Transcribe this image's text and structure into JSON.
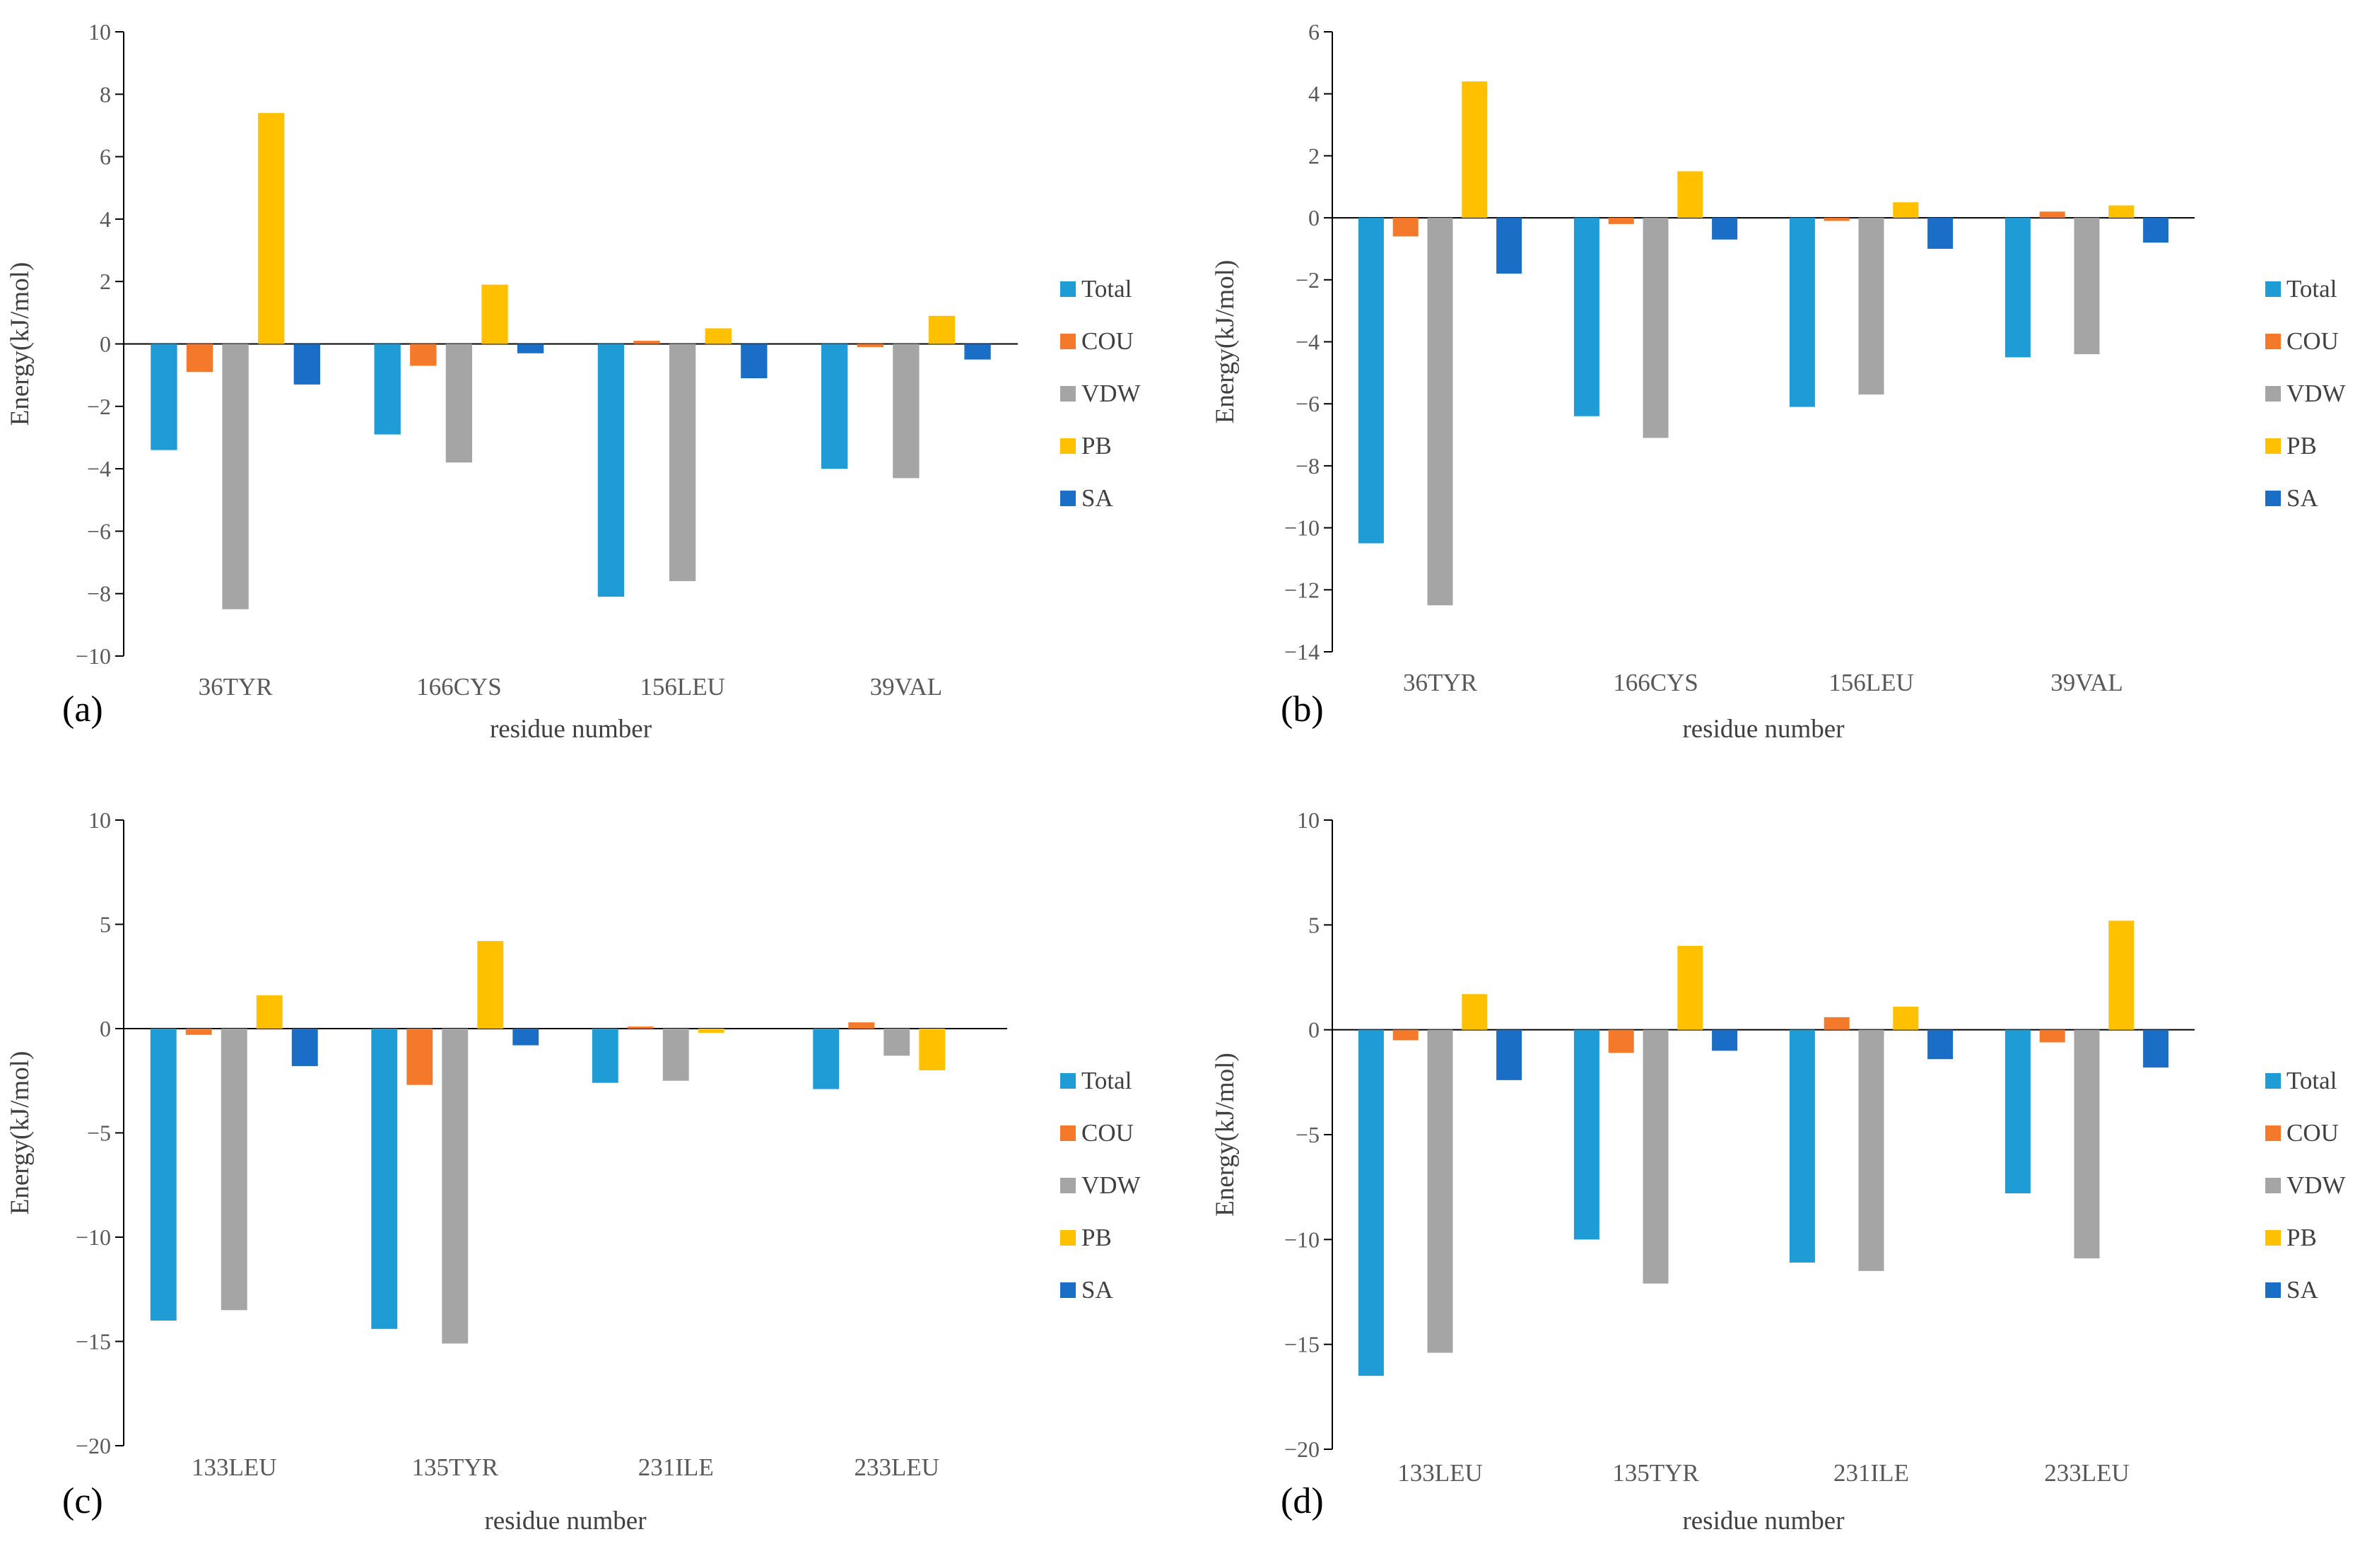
{
  "chart_data": [
    {
      "type": "bar",
      "panel_label": "(a)",
      "ylabel": "Energy(kJ/mol)",
      "xlabel": "residue  number",
      "ylim": [
        -10,
        10
      ],
      "yticks": [
        10,
        8,
        6,
        4,
        2,
        0,
        -2,
        -4,
        -6,
        -8,
        -10
      ],
      "categories": [
        "36TYR",
        "166CYS",
        "156LEU",
        "39VAL"
      ],
      "series": [
        {
          "name": "Total",
          "values": [
            -3.4,
            -2.9,
            -8.1,
            -4.0
          ]
        },
        {
          "name": "COU",
          "values": [
            -0.9,
            -0.7,
            0.1,
            -0.1
          ]
        },
        {
          "name": "VDW",
          "values": [
            -8.5,
            -3.8,
            -7.6,
            -4.3
          ]
        },
        {
          "name": "PB",
          "values": [
            7.4,
            1.9,
            0.5,
            0.9
          ]
        },
        {
          "name": "SA",
          "values": [
            -1.3,
            -0.3,
            -1.1,
            -0.5
          ]
        }
      ],
      "legend": "right"
    },
    {
      "type": "bar",
      "panel_label": "(b)",
      "ylabel": "Energy(kJ/mol)",
      "xlabel": "residue  number",
      "ylim": [
        -14,
        6
      ],
      "yticks": [
        6,
        4,
        2,
        0,
        -2,
        -4,
        -6,
        -8,
        -10,
        -12,
        -14
      ],
      "categories": [
        "36TYR",
        "166CYS",
        "156LEU",
        "39VAL"
      ],
      "series": [
        {
          "name": "Total",
          "values": [
            -10.5,
            -6.4,
            -6.1,
            -4.5
          ]
        },
        {
          "name": "COU",
          "values": [
            -0.6,
            -0.2,
            -0.1,
            0.2
          ]
        },
        {
          "name": "VDW",
          "values": [
            -12.5,
            -7.1,
            -5.7,
            -4.4
          ]
        },
        {
          "name": "PB",
          "values": [
            4.4,
            1.5,
            0.5,
            0.4
          ]
        },
        {
          "name": "SA",
          "values": [
            -1.8,
            -0.7,
            -1.0,
            -0.8
          ]
        }
      ],
      "legend": "right"
    },
    {
      "type": "bar",
      "panel_label": "(c)",
      "ylabel": "Energy(kJ/mol)",
      "xlabel": "residue  number",
      "ylim": [
        -20,
        10
      ],
      "yticks": [
        10,
        5,
        0,
        -5,
        -10,
        -15,
        -20
      ],
      "categories": [
        "133LEU",
        "135TYR",
        "231ILE",
        "233LEU"
      ],
      "series": [
        {
          "name": "Total",
          "values": [
            -14.0,
            -14.4,
            -2.6,
            -2.9
          ]
        },
        {
          "name": "COU",
          "values": [
            -0.3,
            -2.7,
            0.1,
            0.3
          ]
        },
        {
          "name": "VDW",
          "values": [
            -13.5,
            -15.1,
            -2.5,
            -1.3
          ]
        },
        {
          "name": "PB",
          "values": [
            1.6,
            4.2,
            -0.2,
            -2.0
          ]
        },
        {
          "name": "SA",
          "values": [
            -1.8,
            -0.8,
            0.0,
            0.0
          ]
        }
      ],
      "legend": "right"
    },
    {
      "type": "bar",
      "panel_label": "(d)",
      "ylabel": "Energy(kJ/mol)",
      "xlabel": "residue  number",
      "ylim": [
        -20,
        10
      ],
      "yticks": [
        10,
        5,
        0,
        -5,
        -10,
        -15,
        -20
      ],
      "categories": [
        "133LEU",
        "135TYR",
        "231ILE",
        "233LEU"
      ],
      "series": [
        {
          "name": "Total",
          "values": [
            -16.5,
            -10.0,
            -11.1,
            -7.8
          ]
        },
        {
          "name": "COU",
          "values": [
            -0.5,
            -1.1,
            0.6,
            -0.6
          ]
        },
        {
          "name": "VDW",
          "values": [
            -15.4,
            -12.1,
            -11.5,
            -10.9
          ]
        },
        {
          "name": "PB",
          "values": [
            1.7,
            4.0,
            1.1,
            5.2
          ]
        },
        {
          "name": "SA",
          "values": [
            -2.4,
            -1.0,
            -1.4,
            -1.8
          ]
        }
      ],
      "legend": "right"
    }
  ],
  "colors": {
    "Total": "#1f9bd6",
    "COU": "#f5792a",
    "VDW": "#a5a5a5",
    "PB": "#ffc000",
    "SA": "#1a6ec5"
  }
}
